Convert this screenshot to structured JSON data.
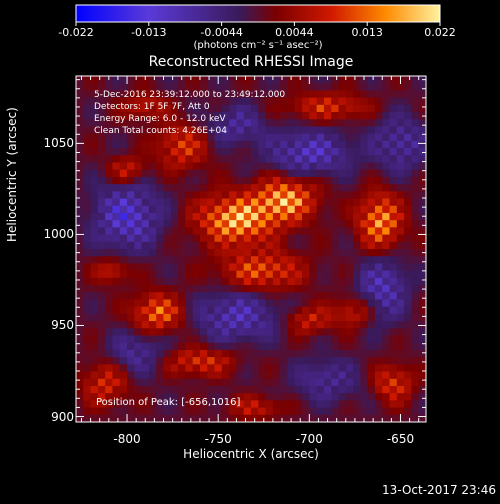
{
  "colorbar": {
    "tick_labels": [
      "-0.022",
      "-0.013",
      "-0.0044",
      "0.0044",
      "0.013",
      "0.022"
    ],
    "label": "(photons cm⁻² s⁻¹ asec⁻²)",
    "range": [
      -0.022,
      0.022
    ],
    "colors": [
      "#0000ff",
      "#5a3ad8",
      "#3a1a5a",
      "#7a0000",
      "#d01800",
      "#ff8a00",
      "#fff2a0"
    ]
  },
  "plot": {
    "title": "Reconstructed RHESSI Image",
    "annotations": [
      "5-Dec-2016 23:39:12.000 to 23:49:12.000",
      "Detectors: 1F 5F 7F, Att 0",
      "Energy Range: 6.0 - 12.0 keV",
      "Clean    Total counts: 4.26E+04"
    ],
    "peak_label": "Position of Peak: [-656,1016]"
  },
  "footer": {
    "date": "13-Oct-2017 23:46"
  },
  "chart_data": {
    "type": "heatmap",
    "title": "Reconstructed RHESSI Image",
    "xlabel": "Heliocentric X (arcsec)",
    "ylabel": "Heliocentric Y (arcsec)",
    "xlim": [
      -828,
      -636
    ],
    "ylim": [
      897,
      1087
    ],
    "x_ticks": [
      -800,
      -750,
      -700,
      -650
    ],
    "y_ticks": [
      900,
      950,
      1000,
      1050
    ],
    "x_tick_labels": [
      "-800",
      "-750",
      "-700",
      "-650"
    ],
    "y_tick_labels": [
      "900",
      "950",
      "1000",
      "1050"
    ],
    "colorbar_range": [
      -0.022,
      0.022
    ],
    "grid_size": [
      48,
      48
    ],
    "peak_position": [
      -656,
      1016
    ],
    "sources": [
      {
        "x": -740,
        "y": 1008,
        "amp": 0.022,
        "sx": 14,
        "sy": 9
      },
      {
        "x": -713,
        "y": 1019,
        "amp": 0.02,
        "sx": 11,
        "sy": 8
      },
      {
        "x": -726,
        "y": 980,
        "amp": 0.014,
        "sx": 15,
        "sy": 7
      },
      {
        "x": -661,
        "y": 1007,
        "amp": 0.019,
        "sx": 8,
        "sy": 10
      },
      {
        "x": -770,
        "y": 1048,
        "amp": 0.012,
        "sx": 9,
        "sy": 8
      },
      {
        "x": -690,
        "y": 1070,
        "amp": 0.011,
        "sx": 14,
        "sy": 5
      },
      {
        "x": -800,
        "y": 1035,
        "amp": 0.01,
        "sx": 7,
        "sy": 5
      },
      {
        "x": -783,
        "y": 957,
        "amp": 0.016,
        "sx": 9,
        "sy": 7
      },
      {
        "x": -700,
        "y": 953,
        "amp": 0.01,
        "sx": 8,
        "sy": 5
      },
      {
        "x": -760,
        "y": 930,
        "amp": 0.012,
        "sx": 12,
        "sy": 5
      },
      {
        "x": -812,
        "y": 918,
        "amp": 0.011,
        "sx": 8,
        "sy": 8
      },
      {
        "x": -654,
        "y": 918,
        "amp": 0.012,
        "sx": 7,
        "sy": 7
      },
      {
        "x": -730,
        "y": 905,
        "amp": 0.009,
        "sx": 10,
        "sy": 4
      },
      {
        "x": -675,
        "y": 958,
        "amp": 0.009,
        "sx": 8,
        "sy": 6
      },
      {
        "x": -808,
        "y": 980,
        "amp": 0.008,
        "sx": 7,
        "sy": 5
      },
      {
        "x": -790,
        "y": 1070,
        "amp": 0.008,
        "sx": 8,
        "sy": 5
      },
      {
        "x": -800,
        "y": 1010,
        "amp": -0.015,
        "sx": 12,
        "sy": 12
      },
      {
        "x": -700,
        "y": 1045,
        "amp": -0.013,
        "sx": 15,
        "sy": 8
      },
      {
        "x": -660,
        "y": 970,
        "amp": -0.012,
        "sx": 9,
        "sy": 12
      },
      {
        "x": -740,
        "y": 955,
        "amp": -0.012,
        "sx": 15,
        "sy": 9
      },
      {
        "x": -650,
        "y": 1050,
        "amp": -0.01,
        "sx": 10,
        "sy": 10
      },
      {
        "x": -740,
        "y": 1060,
        "amp": -0.009,
        "sx": 10,
        "sy": 7
      },
      {
        "x": -795,
        "y": 935,
        "amp": -0.008,
        "sx": 10,
        "sy": 8
      },
      {
        "x": -690,
        "y": 920,
        "amp": -0.008,
        "sx": 12,
        "sy": 8
      }
    ]
  }
}
